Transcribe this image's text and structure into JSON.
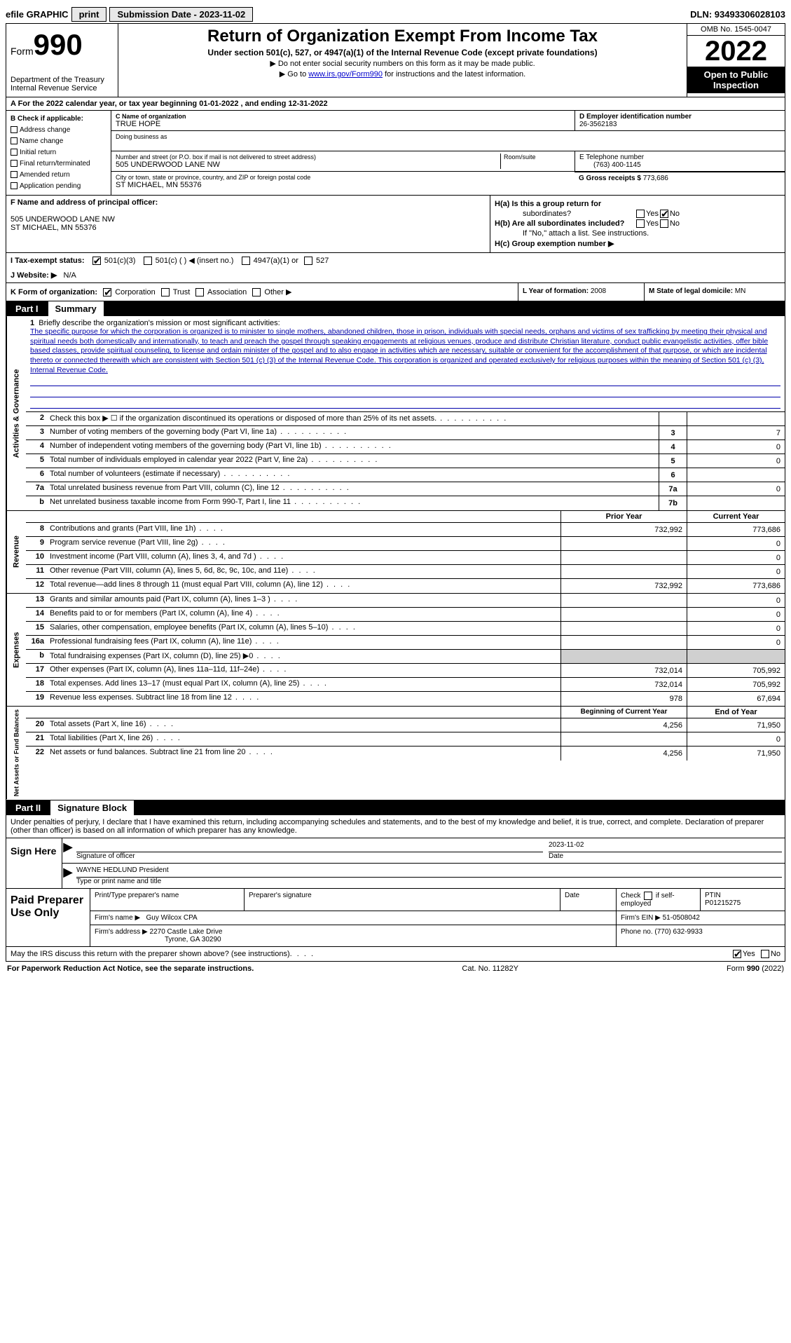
{
  "topbar": {
    "efile": "efile GRAPHIC",
    "print": "print",
    "submission": "Submission Date - 2023-11-02",
    "dln": "DLN: 93493306028103"
  },
  "header": {
    "form_word": "Form",
    "form_num": "990",
    "dept": "Department of the Treasury",
    "irs": "Internal Revenue Service",
    "title": "Return of Organization Exempt From Income Tax",
    "sub1": "Under section 501(c), 527, or 4947(a)(1) of the Internal Revenue Code (except private foundations)",
    "sub2": "▶ Do not enter social security numbers on this form as it may be made public.",
    "sub3_pre": "▶ Go to ",
    "sub3_link": "www.irs.gov/Form990",
    "sub3_post": " for instructions and the latest information.",
    "omb": "OMB No. 1545-0047",
    "year": "2022",
    "open": "Open to Public Inspection"
  },
  "row_a": "A For the 2022 calendar year, or tax year beginning 01-01-2022   , and ending 12-31-2022",
  "col_b": {
    "title": "B Check if applicable:",
    "opts": [
      "Address change",
      "Name change",
      "Initial return",
      "Final return/terminated",
      "Amended return",
      "Application pending"
    ]
  },
  "col_c": {
    "name_lbl": "C Name of organization",
    "name": "TRUE HOPE",
    "dba_lbl": "Doing business as",
    "addr_lbl": "Number and street (or P.O. box if mail is not delivered to street address)",
    "addr": "505 UNDERWOOD LANE NW",
    "room_lbl": "Room/suite",
    "city_lbl": "City or town, state or province, country, and ZIP or foreign postal code",
    "city": "ST MICHAEL, MN  55376"
  },
  "col_d": {
    "ein_lbl": "D Employer identification number",
    "ein": "26-3562183",
    "phone_lbl": "E Telephone number",
    "phone": "(763) 400-1145",
    "gross_lbl": "G Gross receipts $",
    "gross": "773,686"
  },
  "row_f": {
    "lbl": "F  Name and address of principal officer:",
    "line1": "505 UNDERWOOD LANE NW",
    "line2": "ST MICHAEL, MN  55376"
  },
  "row_h": {
    "ha": "H(a)  Is this a group return for",
    "ha2": "subordinates?",
    "hb": "H(b)  Are all subordinates included?",
    "hb_note": "If \"No,\" attach a list. See instructions.",
    "hc": "H(c)  Group exemption number ▶",
    "yes": "Yes",
    "no": "No"
  },
  "row_i": {
    "lbl": "I    Tax-exempt status:",
    "o1": "501(c)(3)",
    "o2": "501(c) (  ) ◀ (insert no.)",
    "o3": "4947(a)(1) or",
    "o4": "527"
  },
  "row_j": {
    "lbl": "J   Website: ▶",
    "val": "N/A"
  },
  "row_k": {
    "lbl": "K Form of organization:",
    "o1": "Corporation",
    "o2": "Trust",
    "o3": "Association",
    "o4": "Other ▶",
    "l_lbl": "L Year of formation:",
    "l_val": "2008",
    "m_lbl": "M State of legal domicile:",
    "m_val": "MN"
  },
  "part1": {
    "num": "Part I",
    "title": "Summary"
  },
  "mission": {
    "num": "1",
    "lbl": "Briefly describe the organization's mission or most significant activities:",
    "text": "The specific purpose for which the corporation is organized is to minister to single mothers, abandoned children, those in prison, individuals with special needs, orphans and victims of sex trafficking by meeting their physical and spiritual needs both domestically and internationally, to teach and preach the gospel through speaking engagements at religious venues, produce and distribute Christian literature, conduct public evangelistic activities, offer bible based classes, provide spiritual counseling, to license and ordain minister of the gospel and to also engage in activities which are necessary, suitable or convenient for the accomplishment of that purpose, or which are incidental thereto or connected therewith which are consistent with Section 501 (c) (3) of the Internal Revenue Code. This corporation is organized and operated exclusively for religious purposes within the meaning of Section 501 (c) (3), Internal Revenue Code."
  },
  "lines_ag": [
    {
      "n": "2",
      "t": "Check this box ▶ ☐ if the organization discontinued its operations or disposed of more than 25% of its net assets.",
      "box": "",
      "v": ""
    },
    {
      "n": "3",
      "t": "Number of voting members of the governing body (Part VI, line 1a)",
      "box": "3",
      "v": "7"
    },
    {
      "n": "4",
      "t": "Number of independent voting members of the governing body (Part VI, line 1b)",
      "box": "4",
      "v": "0"
    },
    {
      "n": "5",
      "t": "Total number of individuals employed in calendar year 2022 (Part V, line 2a)",
      "box": "5",
      "v": "0"
    },
    {
      "n": "6",
      "t": "Total number of volunteers (estimate if necessary)",
      "box": "6",
      "v": ""
    },
    {
      "n": "7a",
      "t": "Total unrelated business revenue from Part VIII, column (C), line 12",
      "box": "7a",
      "v": "0"
    },
    {
      "n": "b",
      "t": "Net unrelated business taxable income from Form 990-T, Part I, line 11",
      "box": "7b",
      "v": ""
    }
  ],
  "col_hdr": {
    "prior": "Prior Year",
    "current": "Current Year"
  },
  "lines_rev": [
    {
      "n": "8",
      "t": "Contributions and grants (Part VIII, line 1h)",
      "py": "732,992",
      "cy": "773,686"
    },
    {
      "n": "9",
      "t": "Program service revenue (Part VIII, line 2g)",
      "py": "",
      "cy": "0"
    },
    {
      "n": "10",
      "t": "Investment income (Part VIII, column (A), lines 3, 4, and 7d )",
      "py": "",
      "cy": "0"
    },
    {
      "n": "11",
      "t": "Other revenue (Part VIII, column (A), lines 5, 6d, 8c, 9c, 10c, and 11e)",
      "py": "",
      "cy": "0"
    },
    {
      "n": "12",
      "t": "Total revenue—add lines 8 through 11 (must equal Part VIII, column (A), line 12)",
      "py": "732,992",
      "cy": "773,686"
    }
  ],
  "lines_exp": [
    {
      "n": "13",
      "t": "Grants and similar amounts paid (Part IX, column (A), lines 1–3 )",
      "py": "",
      "cy": "0"
    },
    {
      "n": "14",
      "t": "Benefits paid to or for members (Part IX, column (A), line 4)",
      "py": "",
      "cy": "0"
    },
    {
      "n": "15",
      "t": "Salaries, other compensation, employee benefits (Part IX, column (A), lines 5–10)",
      "py": "",
      "cy": "0"
    },
    {
      "n": "16a",
      "t": "Professional fundraising fees (Part IX, column (A), line 11e)",
      "py": "",
      "cy": "0"
    },
    {
      "n": "b",
      "t": "Total fundraising expenses (Part IX, column (D), line 25) ▶0",
      "py": "GREY",
      "cy": "GREY"
    },
    {
      "n": "17",
      "t": "Other expenses (Part IX, column (A), lines 11a–11d, 11f–24e)",
      "py": "732,014",
      "cy": "705,992"
    },
    {
      "n": "18",
      "t": "Total expenses. Add lines 13–17 (must equal Part IX, column (A), line 25)",
      "py": "732,014",
      "cy": "705,992"
    },
    {
      "n": "19",
      "t": "Revenue less expenses. Subtract line 18 from line 12",
      "py": "978",
      "cy": "67,694"
    }
  ],
  "col_hdr2": {
    "prior": "Beginning of Current Year",
    "current": "End of Year"
  },
  "lines_net": [
    {
      "n": "20",
      "t": "Total assets (Part X, line 16)",
      "py": "4,256",
      "cy": "71,950"
    },
    {
      "n": "21",
      "t": "Total liabilities (Part X, line 26)",
      "py": "",
      "cy": "0"
    },
    {
      "n": "22",
      "t": "Net assets or fund balances. Subtract line 21 from line 20",
      "py": "4,256",
      "cy": "71,950"
    }
  ],
  "vert": {
    "ag": "Activities & Governance",
    "rev": "Revenue",
    "exp": "Expenses",
    "net": "Net Assets or Fund Balances"
  },
  "part2": {
    "num": "Part II",
    "title": "Signature Block"
  },
  "sig": {
    "intro": "Under penalties of perjury, I declare that I have examined this return, including accompanying schedules and statements, and to the best of my knowledge and belief, it is true, correct, and complete. Declaration of preparer (other than officer) is based on all information of which preparer has any knowledge.",
    "sign_here": "Sign Here",
    "sig_officer": "Signature of officer",
    "date": "Date",
    "date_val": "2023-11-02",
    "name": "WAYNE HEDLUND  President",
    "name_lbl": "Type or print name and title"
  },
  "paid": {
    "title": "Paid Preparer Use Only",
    "h1": "Print/Type preparer's name",
    "h2": "Preparer's signature",
    "h3": "Date",
    "h4_pre": "Check",
    "h4_post": "if self-employed",
    "ptin_lbl": "PTIN",
    "ptin": "P01215275",
    "firm_lbl": "Firm's name   ▶",
    "firm": "Guy Wilcox CPA",
    "ein_lbl": "Firm's EIN ▶",
    "ein": "51-0508042",
    "addr_lbl": "Firm's address ▶",
    "addr1": "2270 Castle Lake Drive",
    "addr2": "Tyrone, GA  30290",
    "phone_lbl": "Phone no.",
    "phone": "(770) 632-9933"
  },
  "footer": {
    "q": "May the IRS discuss this return with the preparer shown above? (see instructions)",
    "yes": "Yes",
    "no": "No",
    "pra": "For Paperwork Reduction Act Notice, see the separate instructions.",
    "cat": "Cat. No. 11282Y",
    "form": "Form 990 (2022)"
  }
}
